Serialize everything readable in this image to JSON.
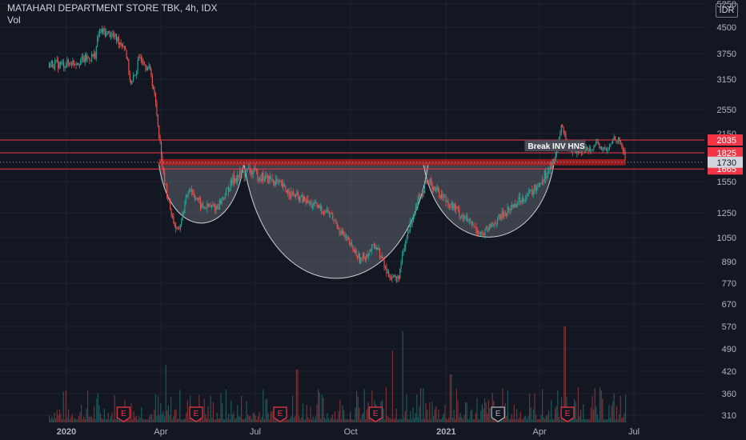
{
  "header": {
    "title": "MATAHARI DEPARTMENT STORE TBK, 4h, IDX",
    "volume_label": "Vol",
    "currency": "IDR"
  },
  "colors": {
    "background": "#131722",
    "up": "#26a69a",
    "down": "#ef5350",
    "grid": "#1e222d",
    "text": "#b2b5be",
    "level_line": "#f23645",
    "pattern_fill": "#8a8d96"
  },
  "chart_data": {
    "type": "candlestick",
    "title": "MATAHARI DEPARTMENT STORE TBK, 4h, IDX",
    "y_scale": "log",
    "y_ticks": [
      5250,
      4500,
      3750,
      3150,
      2550,
      2150,
      1825,
      1550,
      1250,
      1050,
      890,
      770,
      670,
      570,
      490,
      420,
      360,
      310
    ],
    "x_ticks": [
      "2020",
      "Apr",
      "Jul",
      "Oct",
      "2021",
      "Apr",
      "Jul"
    ],
    "price_path": [
      [
        "2019-12-15",
        3500
      ],
      [
        "2019-12-28",
        3480
      ],
      [
        "2020-01-15",
        3580
      ],
      [
        "2020-01-28",
        3700
      ],
      [
        "2020-02-01",
        4380
      ],
      [
        "2020-02-12",
        4300
      ],
      [
        "2020-02-26",
        3950
      ],
      [
        "2020-03-03",
        3000
      ],
      [
        "2020-03-12",
        3700
      ],
      [
        "2020-03-22",
        3300
      ],
      [
        "2020-03-27",
        2600
      ],
      [
        "2020-04-03",
        1600
      ],
      [
        "2020-04-12",
        1200
      ],
      [
        "2020-04-17",
        1080
      ],
      [
        "2020-04-28",
        1500
      ],
      [
        "2020-05-10",
        1300
      ],
      [
        "2020-05-25",
        1300
      ],
      [
        "2020-06-10",
        1580
      ],
      [
        "2020-06-25",
        1650
      ],
      [
        "2020-07-05",
        1600
      ],
      [
        "2020-07-20",
        1550
      ],
      [
        "2020-08-05",
        1420
      ],
      [
        "2020-08-25",
        1320
      ],
      [
        "2020-09-10",
        1250
      ],
      [
        "2020-09-25",
        1050
      ],
      [
        "2020-10-10",
        900
      ],
      [
        "2020-10-25",
        1000
      ],
      [
        "2020-11-05",
        820
      ],
      [
        "2020-11-15",
        790
      ],
      [
        "2020-11-25",
        1100
      ],
      [
        "2020-12-05",
        1400
      ],
      [
        "2020-12-15",
        1550
      ],
      [
        "2020-12-28",
        1400
      ],
      [
        "2021-01-10",
        1280
      ],
      [
        "2021-01-25",
        1150
      ],
      [
        "2021-02-05",
        1070
      ],
      [
        "2021-02-20",
        1200
      ],
      [
        "2021-03-10",
        1350
      ],
      [
        "2021-03-25",
        1450
      ],
      [
        "2021-04-05",
        1600
      ],
      [
        "2021-04-15",
        1730
      ],
      [
        "2021-04-22",
        2300
      ],
      [
        "2021-04-28",
        1900
      ],
      [
        "2021-05-10",
        1850
      ],
      [
        "2021-05-25",
        1950
      ],
      [
        "2021-06-05",
        1850
      ],
      [
        "2021-06-12",
        2100
      ],
      [
        "2021-06-18",
        1980
      ],
      [
        "2021-06-23",
        1730
      ]
    ],
    "horizontal_levels": [
      {
        "value": 2035,
        "label": "2035",
        "style": "line"
      },
      {
        "value": 1825,
        "label": "1825",
        "style": "line"
      },
      {
        "value": 1665,
        "label": "1665",
        "style": "line"
      }
    ],
    "current_price": {
      "value": 1730,
      "label": "1730"
    },
    "neckline": {
      "from": "2020-03-30",
      "to": "2021-06-23",
      "low": 1700,
      "high": 1760
    },
    "annotation": {
      "text": "Break INV HNS",
      "date": "2021-03-20",
      "price": 1900
    },
    "pattern_shapes": [
      {
        "name": "left-shoulder",
        "start": "2020-03-30",
        "end": "2020-06-20",
        "edge": 1720,
        "bottom": 1150
      },
      {
        "name": "head",
        "start": "2020-06-20",
        "end": "2020-12-15",
        "edge": 1720,
        "bottom": 780
      },
      {
        "name": "right-shoulder",
        "start": "2020-12-10",
        "end": "2021-04-15",
        "edge": 1720,
        "bottom": 1040
      }
    ],
    "earnings_markers": [
      {
        "date": "2020-02-25",
        "label": "E",
        "type": "past"
      },
      {
        "date": "2020-05-05",
        "label": "E",
        "type": "past"
      },
      {
        "date": "2020-07-25",
        "label": "E",
        "type": "past"
      },
      {
        "date": "2020-10-25",
        "label": "E",
        "type": "past"
      },
      {
        "date": "2021-02-20",
        "label": "E",
        "type": "upcoming"
      },
      {
        "date": "2021-04-28",
        "label": "E",
        "type": "past"
      }
    ],
    "volume": {
      "relative_max": 1.0,
      "spikes": [
        [
          "2020-11-20",
          0.95
        ],
        [
          "2021-04-25",
          1.0
        ],
        [
          "2020-11-10",
          0.75
        ],
        [
          "2020-08-10",
          0.55
        ],
        [
          "2020-04-05",
          0.6
        ],
        [
          "2021-01-05",
          0.5
        ]
      ]
    }
  }
}
